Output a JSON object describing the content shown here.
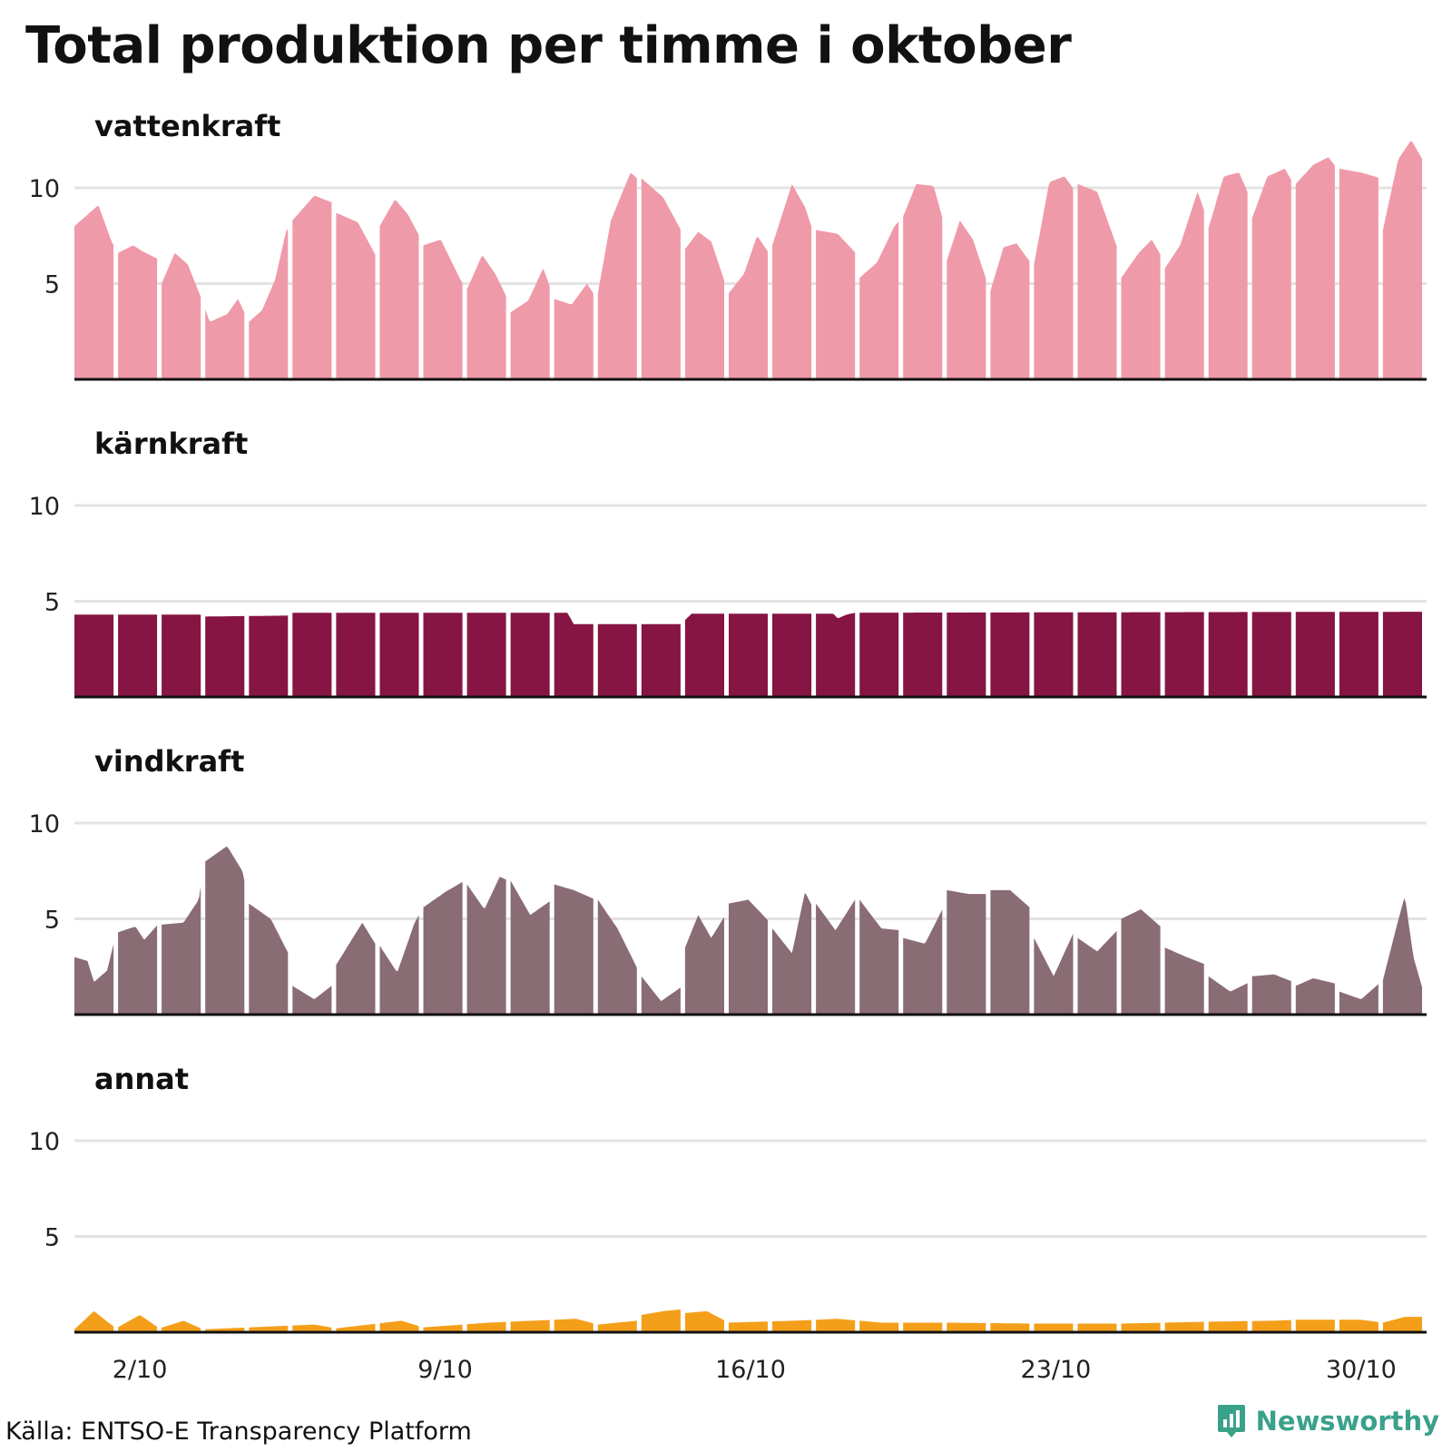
{
  "title": "Total produktion per timme i oktober",
  "source": "Källa: ENTSO-E Transparency Platform",
  "brand": {
    "name": "Newsworthy",
    "logo_icon": "bar-chart-speech-bubble-icon",
    "color": "#3aa18b"
  },
  "chart_data": {
    "type": "area",
    "subtype": "small-multiples",
    "x_unit": "hour",
    "x_range_days": [
      1,
      31
    ],
    "x_ticks": [
      {
        "day": 2,
        "label": "2/10"
      },
      {
        "day": 9,
        "label": "9/10"
      },
      {
        "day": 16,
        "label": "16/10"
      },
      {
        "day": 23,
        "label": "23/10"
      },
      {
        "day": 30,
        "label": "30/10"
      }
    ],
    "ylim": [
      0,
      12.5
    ],
    "yticks": [
      5,
      10
    ],
    "ytick_labels": [
      "5",
      "10"
    ],
    "grid": true,
    "gaps_between_days": true,
    "series": [
      {
        "name": "vattenkraft",
        "color": "#ef9aa9",
        "daily_profile_points": [
          [
            1,
            8.0
          ],
          [
            1.3,
            8.6
          ],
          [
            1.55,
            9.1
          ],
          [
            1.85,
            7.2
          ],
          [
            2.0,
            6.6
          ],
          [
            2.35,
            7.0
          ],
          [
            2.55,
            6.7
          ],
          [
            2.9,
            6.3
          ],
          [
            3.0,
            5.0
          ],
          [
            3.3,
            6.6
          ],
          [
            3.6,
            6.0
          ],
          [
            3.95,
            4.0
          ],
          [
            4.1,
            3.0
          ],
          [
            4.5,
            3.4
          ],
          [
            4.75,
            4.2
          ],
          [
            5.0,
            3.0
          ],
          [
            5.3,
            3.6
          ],
          [
            5.6,
            5.2
          ],
          [
            5.85,
            7.7
          ],
          [
            6.0,
            8.3
          ],
          [
            6.5,
            9.6
          ],
          [
            6.95,
            9.2
          ],
          [
            7.0,
            8.7
          ],
          [
            7.5,
            8.2
          ],
          [
            7.9,
            6.5
          ],
          [
            8.0,
            8.0
          ],
          [
            8.35,
            9.4
          ],
          [
            8.65,
            8.6
          ],
          [
            8.95,
            7.3
          ],
          [
            9.0,
            7.0
          ],
          [
            9.4,
            7.3
          ],
          [
            9.85,
            5.2
          ],
          [
            10.0,
            4.7
          ],
          [
            10.35,
            6.5
          ],
          [
            10.65,
            5.5
          ],
          [
            10.95,
            4.1
          ],
          [
            11.0,
            3.5
          ],
          [
            11.4,
            4.1
          ],
          [
            11.75,
            5.8
          ],
          [
            12.0,
            4.2
          ],
          [
            12.4,
            3.9
          ],
          [
            12.75,
            5.0
          ],
          [
            12.95,
            4.3
          ],
          [
            13.0,
            4.5
          ],
          [
            13.3,
            8.3
          ],
          [
            13.75,
            10.8
          ],
          [
            13.95,
            10.4
          ],
          [
            14.0,
            10.5
          ],
          [
            14.5,
            9.5
          ],
          [
            14.95,
            7.6
          ],
          [
            15.0,
            6.8
          ],
          [
            15.3,
            7.7
          ],
          [
            15.6,
            7.2
          ],
          [
            15.95,
            4.8
          ],
          [
            16.0,
            4.5
          ],
          [
            16.35,
            5.5
          ],
          [
            16.65,
            7.5
          ],
          [
            16.95,
            6.5
          ],
          [
            17.0,
            7.0
          ],
          [
            17.45,
            10.2
          ],
          [
            17.75,
            9.0
          ],
          [
            17.95,
            7.6
          ],
          [
            18.0,
            7.8
          ],
          [
            18.5,
            7.6
          ],
          [
            18.95,
            6.5
          ],
          [
            19.0,
            5.3
          ],
          [
            19.4,
            6.1
          ],
          [
            19.8,
            8.0
          ],
          [
            20.0,
            8.5
          ],
          [
            20.3,
            10.2
          ],
          [
            20.7,
            10.1
          ],
          [
            20.95,
            8.0
          ],
          [
            21.0,
            6.2
          ],
          [
            21.3,
            8.3
          ],
          [
            21.6,
            7.3
          ],
          [
            21.95,
            4.9
          ],
          [
            22.0,
            4.6
          ],
          [
            22.3,
            6.9
          ],
          [
            22.6,
            7.1
          ],
          [
            22.95,
            6.0
          ],
          [
            23.0,
            6.0
          ],
          [
            23.35,
            10.3
          ],
          [
            23.7,
            10.6
          ],
          [
            23.95,
            9.8
          ],
          [
            24.0,
            10.2
          ],
          [
            24.45,
            9.8
          ],
          [
            24.95,
            6.6
          ],
          [
            25.0,
            5.3
          ],
          [
            25.4,
            6.6
          ],
          [
            25.7,
            7.3
          ],
          [
            25.95,
            6.3
          ],
          [
            26.0,
            5.8
          ],
          [
            26.35,
            7.0
          ],
          [
            26.75,
            9.8
          ],
          [
            26.95,
            8.5
          ],
          [
            27.0,
            7.9
          ],
          [
            27.35,
            10.6
          ],
          [
            27.7,
            10.8
          ],
          [
            27.95,
            9.5
          ],
          [
            28.0,
            8.4
          ],
          [
            28.35,
            10.6
          ],
          [
            28.75,
            11.0
          ],
          [
            28.95,
            10.2
          ],
          [
            29.0,
            10.2
          ],
          [
            29.4,
            11.2
          ],
          [
            29.75,
            11.6
          ],
          [
            29.95,
            11.0
          ],
          [
            30.0,
            11.0
          ],
          [
            30.5,
            10.8
          ],
          [
            30.95,
            10.5
          ],
          [
            31.0,
            7.8
          ],
          [
            31.35,
            11.5
          ],
          [
            31.65,
            12.5
          ],
          [
            31.9,
            11.5
          ]
        ]
      },
      {
        "name": "kärnkraft",
        "color": "#861543",
        "daily_profile_points": [
          [
            1,
            4.3
          ],
          [
            3.9,
            4.3
          ],
          [
            4.0,
            4.2
          ],
          [
            5.9,
            4.25
          ],
          [
            6.0,
            4.4
          ],
          [
            12.3,
            4.4
          ],
          [
            12.45,
            3.8
          ],
          [
            14.9,
            3.8
          ],
          [
            15.15,
            4.35
          ],
          [
            18.4,
            4.35
          ],
          [
            18.5,
            4.1
          ],
          [
            18.7,
            4.3
          ],
          [
            18.9,
            4.4
          ],
          [
            31.95,
            4.45
          ]
        ]
      },
      {
        "name": "vindkraft",
        "color": "#8a6c75",
        "daily_profile_points": [
          [
            1,
            3.0
          ],
          [
            1.3,
            2.8
          ],
          [
            1.45,
            1.7
          ],
          [
            1.75,
            2.3
          ],
          [
            1.95,
            4.2
          ],
          [
            2.0,
            4.3
          ],
          [
            2.4,
            4.6
          ],
          [
            2.6,
            3.9
          ],
          [
            2.95,
            4.8
          ],
          [
            3.0,
            4.7
          ],
          [
            3.5,
            4.8
          ],
          [
            3.85,
            6.0
          ],
          [
            3.95,
            7.5
          ],
          [
            4.0,
            8.0
          ],
          [
            4.5,
            8.8
          ],
          [
            4.85,
            7.5
          ],
          [
            5.0,
            5.8
          ],
          [
            5.5,
            5.0
          ],
          [
            5.95,
            3.0
          ],
          [
            6.0,
            1.5
          ],
          [
            6.5,
            0.8
          ],
          [
            6.95,
            1.6
          ],
          [
            7.0,
            2.6
          ],
          [
            7.6,
            4.8
          ],
          [
            7.95,
            3.5
          ],
          [
            8.0,
            3.6
          ],
          [
            8.4,
            2.2
          ],
          [
            8.8,
            4.8
          ],
          [
            9.0,
            5.6
          ],
          [
            9.5,
            6.4
          ],
          [
            9.95,
            7.0
          ],
          [
            10.0,
            6.8
          ],
          [
            10.4,
            5.5
          ],
          [
            10.75,
            7.2
          ],
          [
            10.95,
            7.0
          ],
          [
            11.0,
            7.0
          ],
          [
            11.45,
            5.2
          ],
          [
            11.95,
            6.0
          ],
          [
            12.0,
            6.8
          ],
          [
            12.45,
            6.5
          ],
          [
            12.95,
            6.0
          ],
          [
            13.0,
            6.0
          ],
          [
            13.45,
            4.5
          ],
          [
            13.95,
            2.2
          ],
          [
            14.0,
            2.0
          ],
          [
            14.45,
            0.7
          ],
          [
            14.95,
            1.5
          ],
          [
            15.0,
            3.5
          ],
          [
            15.3,
            5.2
          ],
          [
            15.6,
            4.0
          ],
          [
            15.95,
            5.3
          ],
          [
            16.0,
            5.8
          ],
          [
            16.45,
            6.0
          ],
          [
            16.95,
            4.8
          ],
          [
            17.0,
            4.5
          ],
          [
            17.45,
            3.2
          ],
          [
            17.75,
            6.4
          ],
          [
            17.95,
            5.5
          ],
          [
            18.0,
            5.8
          ],
          [
            18.45,
            4.4
          ],
          [
            18.95,
            6.2
          ],
          [
            19.0,
            6.0
          ],
          [
            19.5,
            4.5
          ],
          [
            19.95,
            4.4
          ],
          [
            20.0,
            4.0
          ],
          [
            20.5,
            3.7
          ],
          [
            20.9,
            5.5
          ],
          [
            20.98,
            6.7
          ],
          [
            21.0,
            6.5
          ],
          [
            21.5,
            6.3
          ],
          [
            21.95,
            6.3
          ],
          [
            22.0,
            6.5
          ],
          [
            22.45,
            6.5
          ],
          [
            22.95,
            5.5
          ],
          [
            23.0,
            4.0
          ],
          [
            23.45,
            2.0
          ],
          [
            23.95,
            4.5
          ],
          [
            24.0,
            4.0
          ],
          [
            24.45,
            3.3
          ],
          [
            24.95,
            4.5
          ],
          [
            25.0,
            5.0
          ],
          [
            25.45,
            5.5
          ],
          [
            25.95,
            4.5
          ],
          [
            26.0,
            3.5
          ],
          [
            26.5,
            3.0
          ],
          [
            26.95,
            2.6
          ],
          [
            27.0,
            2.0
          ],
          [
            27.5,
            1.2
          ],
          [
            27.95,
            1.7
          ],
          [
            28.0,
            2.0
          ],
          [
            28.5,
            2.1
          ],
          [
            28.95,
            1.7
          ],
          [
            29.0,
            1.5
          ],
          [
            29.4,
            1.9
          ],
          [
            29.95,
            1.6
          ],
          [
            30.0,
            1.2
          ],
          [
            30.5,
            0.8
          ],
          [
            30.95,
            1.7
          ],
          [
            31.0,
            1.8
          ],
          [
            31.3,
            4.5
          ],
          [
            31.5,
            6.2
          ],
          [
            31.7,
            3.0
          ],
          [
            31.9,
            1.4
          ]
        ]
      },
      {
        "name": "annat",
        "color": "#f49f1a",
        "daily_profile_points": [
          [
            1,
            0.15
          ],
          [
            1.45,
            1.1
          ],
          [
            1.95,
            0.2
          ],
          [
            2.5,
            0.9
          ],
          [
            2.95,
            0.2
          ],
          [
            3.5,
            0.6
          ],
          [
            3.95,
            0.15
          ],
          [
            5.5,
            0.3
          ],
          [
            6.5,
            0.4
          ],
          [
            7.0,
            0.2
          ],
          [
            8.5,
            0.6
          ],
          [
            9.0,
            0.25
          ],
          [
            10.5,
            0.5
          ],
          [
            11.5,
            0.6
          ],
          [
            12.5,
            0.7
          ],
          [
            13.0,
            0.4
          ],
          [
            13.9,
            0.6
          ],
          [
            14.0,
            0.9
          ],
          [
            14.5,
            1.1
          ],
          [
            14.95,
            1.2
          ],
          [
            15.0,
            1.0
          ],
          [
            15.5,
            1.1
          ],
          [
            16.0,
            0.5
          ],
          [
            17.5,
            0.6
          ],
          [
            18.5,
            0.7
          ],
          [
            19.5,
            0.5
          ],
          [
            21.0,
            0.5
          ],
          [
            23.0,
            0.45
          ],
          [
            25.0,
            0.45
          ],
          [
            27.0,
            0.55
          ],
          [
            28.5,
            0.6
          ],
          [
            29.0,
            0.65
          ],
          [
            30.5,
            0.65
          ],
          [
            31.0,
            0.5
          ],
          [
            31.5,
            0.8
          ],
          [
            31.95,
            0.8
          ]
        ]
      }
    ]
  }
}
